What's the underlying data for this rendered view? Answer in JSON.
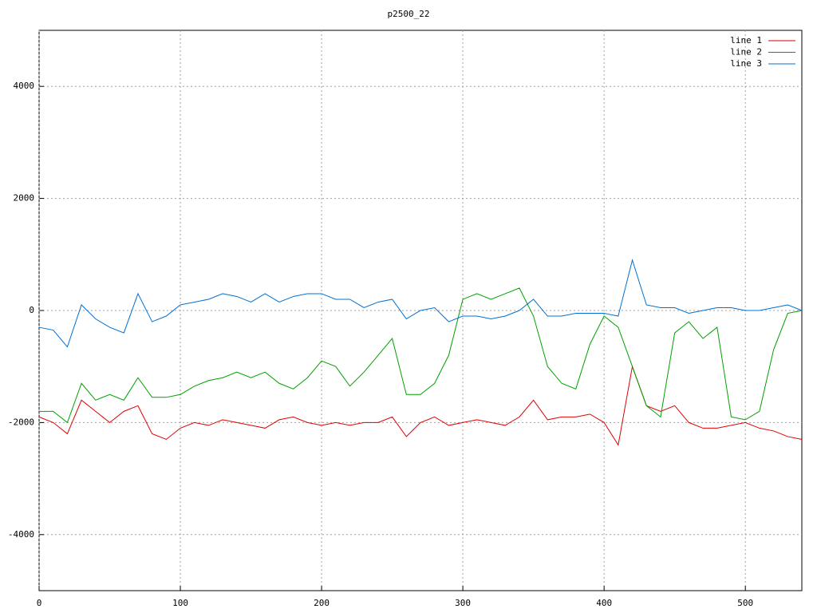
{
  "chart_data": {
    "type": "line",
    "title": "p2500_22",
    "x": [
      0,
      10,
      20,
      30,
      40,
      50,
      60,
      70,
      80,
      90,
      100,
      110,
      120,
      130,
      140,
      150,
      160,
      170,
      180,
      190,
      200,
      210,
      220,
      230,
      240,
      250,
      260,
      270,
      280,
      290,
      300,
      310,
      320,
      330,
      340,
      350,
      360,
      370,
      380,
      390,
      400,
      410,
      420,
      430,
      440,
      450,
      460,
      470,
      480,
      490,
      500,
      510,
      520,
      530,
      540
    ],
    "series": [
      {
        "name": "line 1",
        "color": "#e00000",
        "values": [
          -1900,
          -2000,
          -2200,
          -1600,
          -1800,
          -2000,
          -1800,
          -1700,
          -2200,
          -2300,
          -2100,
          -2000,
          -2050,
          -1950,
          -2000,
          -2050,
          -2100,
          -1950,
          -1900,
          -2000,
          -2050,
          -2000,
          -2050,
          -2000,
          -2000,
          -1900,
          -2250,
          -2000,
          -1900,
          -2050,
          -2000,
          -1950,
          -2000,
          -2050,
          -1900,
          -1600,
          -1950,
          -1900,
          -1900,
          -1850,
          -2000,
          -2400,
          -1000,
          -1700,
          -1800,
          -1700,
          -2000,
          -2100,
          -2100,
          -2050,
          -2000,
          -2100,
          -2150,
          -2250,
          -2300
        ]
      },
      {
        "name": "line 2",
        "color": "#00a000",
        "values": [
          -1800,
          -1800,
          -2000,
          -1300,
          -1600,
          -1500,
          -1600,
          -1200,
          -1550,
          -1550,
          -1500,
          -1350,
          -1250,
          -1200,
          -1100,
          -1200,
          -1100,
          -1300,
          -1400,
          -1200,
          -900,
          -1000,
          -1350,
          -1100,
          -800,
          -500,
          -1500,
          -1500,
          -1300,
          -800,
          200,
          300,
          200,
          300,
          400,
          -100,
          -1000,
          -1300,
          -1400,
          -600,
          -100,
          -300,
          -1000,
          -1700,
          -1900,
          -400,
          -200,
          -500,
          -300,
          -1900,
          -1950,
          -1800,
          -700,
          -50,
          0
        ]
      },
      {
        "name": "line 3",
        "color": "#0070d0",
        "values": [
          -300,
          -350,
          -650,
          100,
          -150,
          -300,
          -400,
          300,
          -200,
          -100,
          100,
          150,
          200,
          300,
          250,
          150,
          300,
          150,
          250,
          300,
          300,
          200,
          200,
          50,
          150,
          200,
          -150,
          0,
          50,
          -200,
          -100,
          -100,
          -150,
          -100,
          0,
          200,
          -100,
          -100,
          -50,
          -50,
          -50,
          -100,
          900,
          100,
          50,
          50,
          -50,
          0,
          50,
          50,
          0,
          0,
          50,
          100,
          0
        ]
      }
    ],
    "xlim": [
      0,
      540
    ],
    "ylim": [
      -5000,
      5000
    ],
    "xticks": [
      0,
      100,
      200,
      300,
      400,
      500
    ],
    "yticks": [
      -4000,
      -2000,
      0,
      2000,
      4000
    ],
    "grid": true,
    "legend": "top-right"
  }
}
